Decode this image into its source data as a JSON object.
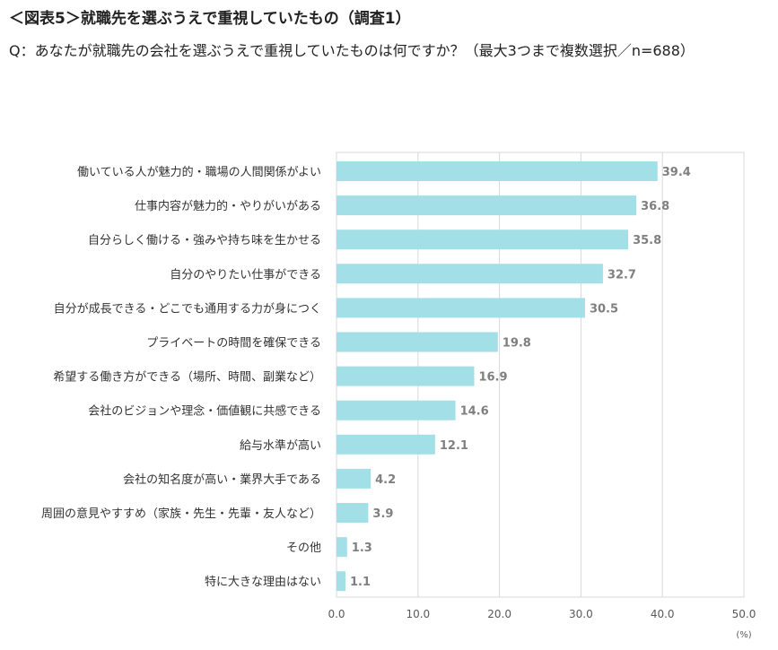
{
  "header": {
    "title": "＜図表5＞就職先を選ぶうえで重視していたもの（調査1）",
    "question": "Q：あなたが就職先の会社を選ぶうえで重視していたものは何ですか？（最大3つまで複数選択／n=688）"
  },
  "chart_data": {
    "type": "bar",
    "orientation": "horizontal",
    "categories": [
      "働いている人が魅力的・職場の人間関係がよい",
      "仕事内容が魅力的・やりがいがある",
      "自分らしく働ける・強みや持ち味を生かせる",
      "自分のやりたい仕事ができる",
      "自分が成長できる・どこでも通用する力が身につく",
      "プライベートの時間を確保できる",
      "希望する働き方ができる（場所、時間、副業など）",
      "会社のビジョンや理念・価値観に共感できる",
      "給与水準が高い",
      "会社の知名度が高い・業界大手である",
      "周囲の意見やすすめ（家族・先生・先輩・友人など）",
      "その他",
      "特に大きな理由はない"
    ],
    "values": [
      39.4,
      36.8,
      35.8,
      32.7,
      30.5,
      19.8,
      16.9,
      14.6,
      12.1,
      4.2,
      3.9,
      1.3,
      1.1
    ],
    "value_labels": [
      "39.4",
      "36.8",
      "35.8",
      "32.7",
      "30.5",
      "19.8",
      "16.9",
      "14.6",
      "12.1",
      "4.2",
      "3.9",
      "1.3",
      "1.1"
    ],
    "xlim": [
      0,
      50
    ],
    "xticks": [
      "0.0",
      "10.0",
      "20.0",
      "30.0",
      "40.0",
      "50.0"
    ],
    "xticks_values": [
      0,
      10,
      20,
      30,
      40,
      50
    ],
    "unit_label": "(%)",
    "grid": true,
    "bar_color": "#a3dfe7",
    "grid_color": "#d9d9d9",
    "label_color": "#7f7f7f"
  }
}
